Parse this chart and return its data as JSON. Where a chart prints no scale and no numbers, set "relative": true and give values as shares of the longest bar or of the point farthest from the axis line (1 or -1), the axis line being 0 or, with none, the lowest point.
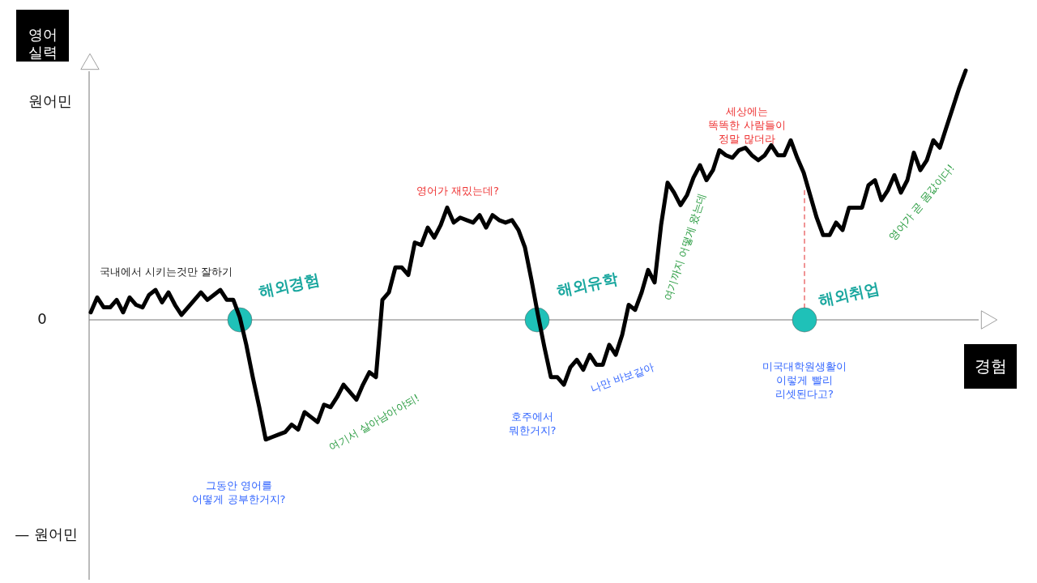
{
  "chart_data": {
    "type": "line",
    "relative": true,
    "xlabel": "경험",
    "ylabel": "영어 실력",
    "categories": [
      null,
      null,
      null,
      null,
      null,
      null,
      null,
      null,
      null,
      null,
      null,
      null,
      null,
      null,
      null,
      null,
      null,
      null,
      null,
      null,
      null,
      null,
      null,
      null,
      null,
      null,
      null,
      null,
      null,
      null,
      null,
      null,
      null,
      null,
      null,
      null,
      null,
      null,
      null,
      null,
      null,
      null,
      null,
      null,
      null,
      null,
      null,
      null,
      null,
      null,
      null,
      null,
      null,
      null,
      null,
      null,
      null,
      null,
      null,
      null,
      null,
      null,
      null,
      null,
      null,
      null,
      null,
      null,
      null,
      null,
      null,
      null,
      null,
      null,
      null,
      null,
      null,
      null,
      null,
      null,
      null,
      null,
      null,
      null,
      null,
      null,
      null,
      null,
      null,
      null,
      null,
      null,
      null,
      null,
      null,
      null,
      null,
      null,
      null,
      null,
      null,
      null,
      null,
      null,
      null,
      null,
      null,
      null,
      null,
      null,
      null,
      null,
      null,
      null,
      null,
      null,
      null,
      null,
      null,
      null,
      null,
      null,
      null,
      null,
      null,
      null,
      null,
      null,
      null,
      null,
      null,
      null,
      null,
      null,
      null,
      null
    ],
    "series": [
      {
        "color": "#000000",
        "values": [
          0.03,
          0.09,
          0.05,
          0.05,
          0.08,
          0.03,
          0.09,
          0.06,
          0.05,
          0.1,
          0.12,
          0.07,
          0.11,
          0.06,
          0.02,
          0.05,
          0.08,
          0.11,
          0.08,
          0.1,
          0.12,
          0.08,
          0.08,
          0.01,
          -0.1,
          -0.23,
          -0.35,
          -0.48,
          -0.47,
          -0.46,
          -0.45,
          -0.42,
          -0.44,
          -0.37,
          -0.39,
          -0.41,
          -0.34,
          -0.35,
          -0.31,
          -0.26,
          -0.29,
          -0.32,
          -0.26,
          -0.21,
          -0.23,
          0.08,
          0.11,
          0.21,
          0.21,
          0.18,
          0.31,
          0.3,
          0.37,
          0.33,
          0.38,
          0.45,
          0.39,
          0.41,
          0.4,
          0.39,
          0.42,
          0.37,
          0.42,
          0.4,
          0.39,
          0.4,
          0.36,
          0.29,
          0.16,
          0.02,
          -0.11,
          -0.23,
          -0.23,
          -0.26,
          -0.19,
          -0.16,
          -0.2,
          -0.14,
          -0.18,
          -0.18,
          -0.1,
          -0.14,
          -0.06,
          0.06,
          0.04,
          0.11,
          0.2,
          0.15,
          0.38,
          0.55,
          0.51,
          0.46,
          0.5,
          0.57,
          0.62,
          0.56,
          0.6,
          0.68,
          0.66,
          0.65,
          0.68,
          0.69,
          0.66,
          0.64,
          0.66,
          0.7,
          0.66,
          0.66,
          0.72,
          0.65,
          0.59,
          0.5,
          0.41,
          0.34,
          0.34,
          0.39,
          0.36,
          0.45,
          0.45,
          0.45,
          0.54,
          0.56,
          0.48,
          0.52,
          0.58,
          0.51,
          0.56,
          0.67,
          0.6,
          0.64,
          0.72,
          0.69,
          0.77,
          0.85,
          0.93,
          1.0
        ]
      }
    ],
    "annotations": [
      "국내에서 시키는것만 잘하기",
      "해외경험",
      "그동안 영어를\n어떻게 공부한거지?",
      "여기서 살아남아야되!",
      "영어가 재밌는데?",
      "호주에서\n뭐한거지?",
      "해외유학",
      "나만 바보같아",
      "여기까지 어떻게 왔는데",
      "세상에는\n똑똑한 사람들이\n정말 많더라",
      "미국대학원생활이\n이렇게 빨리\n리셋된다고?",
      "해외취업",
      "영어가 곧 몸값이다!",
      "원어민",
      "0",
      "— 원어민"
    ]
  }
}
